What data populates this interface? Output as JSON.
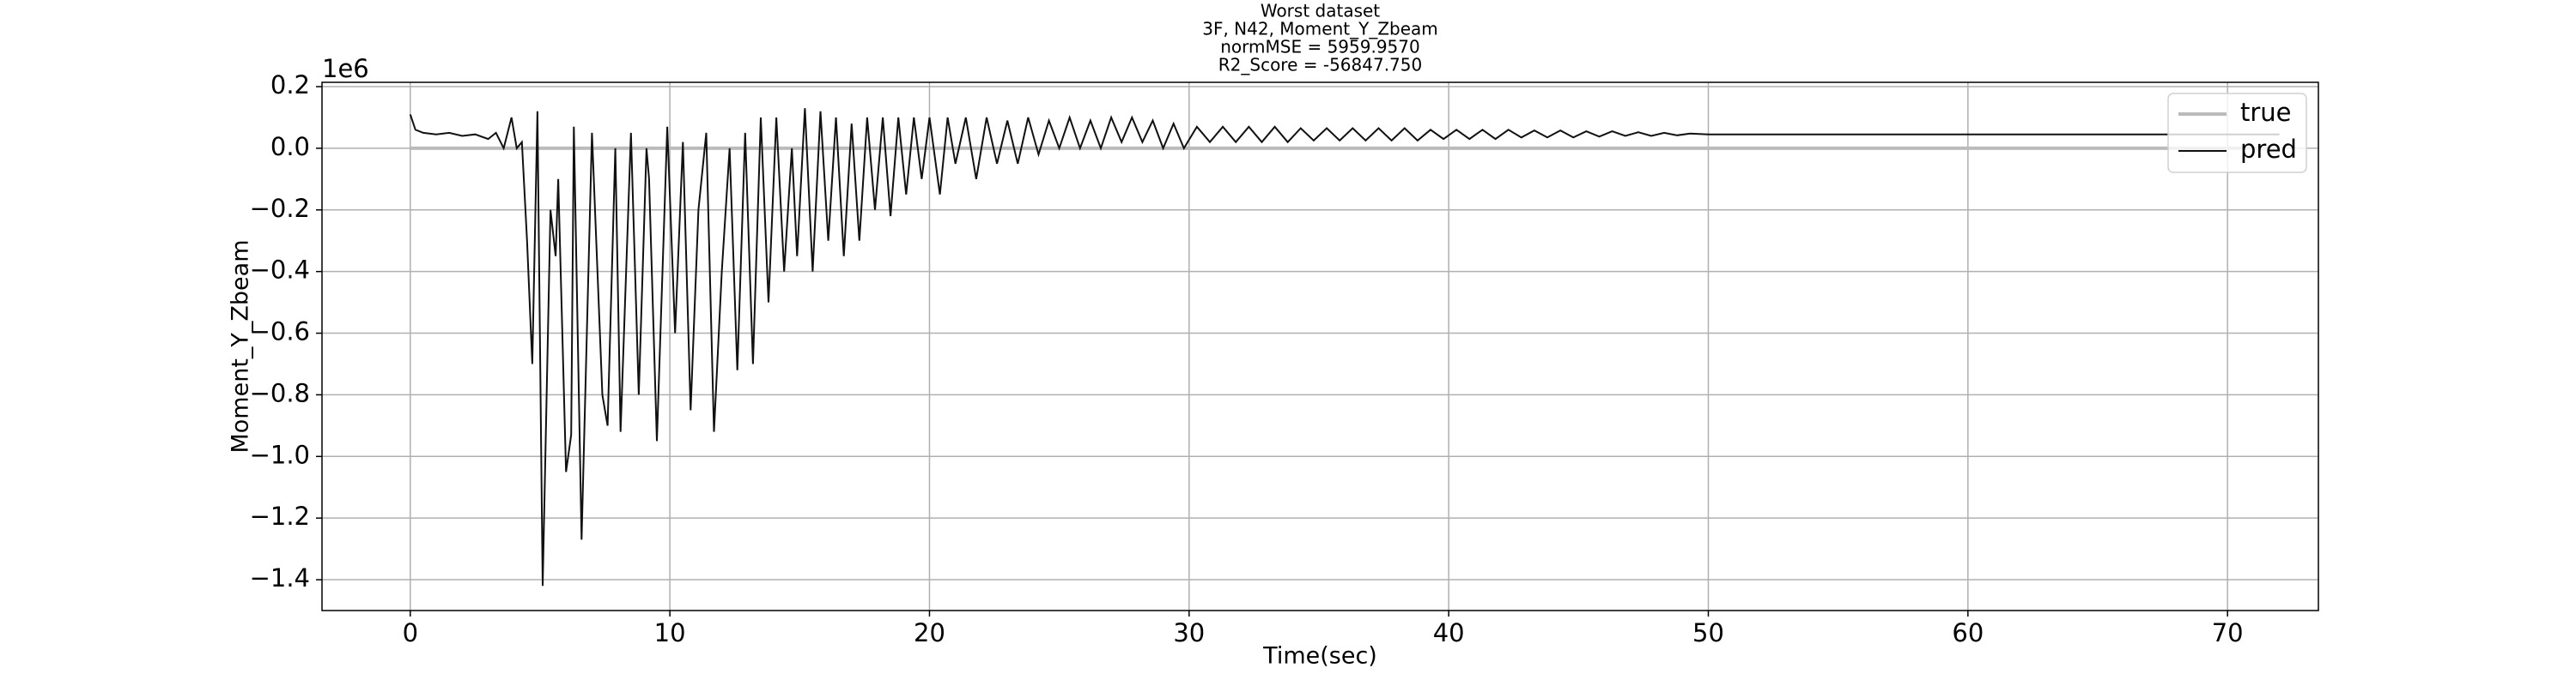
{
  "chart_data": {
    "type": "line",
    "title": [
      "Worst dataset",
      "3F, N42, Moment_Y_Zbeam",
      "normMSE = 5959.9570",
      "R2_Score = -56847.750"
    ],
    "xlabel": "Time(sec)",
    "ylabel": "Moment_Y_Zbeam",
    "y_offset_label": "1e6",
    "xlim": [
      -3.4,
      73.5
    ],
    "ylim": [
      -1.5,
      0.214
    ],
    "xticks": [
      0,
      10,
      20,
      30,
      40,
      50,
      60,
      70
    ],
    "yticks": [
      {
        "value": -1.4,
        "label": "−1.4"
      },
      {
        "value": -1.2,
        "label": "−1.2"
      },
      {
        "value": -1.0,
        "label": "−1.0"
      },
      {
        "value": -0.8,
        "label": "−0.8"
      },
      {
        "value": -0.6,
        "label": "−0.6"
      },
      {
        "value": -0.4,
        "label": "−0.4"
      },
      {
        "value": -0.2,
        "label": "−0.2"
      },
      {
        "value": 0,
        "label": "0.0"
      },
      0.2
    ],
    "grid": true,
    "legend": "upper right",
    "series": [
      {
        "name": "true",
        "color": "#bbbbbb",
        "x": [
          0,
          72
        ],
        "values": [
          0,
          0
        ]
      },
      {
        "name": "pred",
        "color": "#111111",
        "x": [
          0,
          0.2,
          0.5,
          1,
          1.5,
          2,
          2.5,
          3,
          3.3,
          3.6,
          3.9,
          4.1,
          4.3,
          4.5,
          4.7,
          4.9,
          5.1,
          5.4,
          5.6,
          5.7,
          6.0,
          6.2,
          6.3,
          6.6,
          7.0,
          7.4,
          7.6,
          7.9,
          8.1,
          8.5,
          8.8,
          9.1,
          9.2,
          9.5,
          9.9,
          10.2,
          10.5,
          10.8,
          11.1,
          11.4,
          11.7,
          12.0,
          12.3,
          12.6,
          12.9,
          13.2,
          13.5,
          13.8,
          14.1,
          14.4,
          14.7,
          14.9,
          15.2,
          15.5,
          15.8,
          16.1,
          16.4,
          16.7,
          17.0,
          17.3,
          17.6,
          17.9,
          18.2,
          18.5,
          18.8,
          19.1,
          19.4,
          19.7,
          20,
          20.4,
          20.7,
          21.0,
          21.4,
          21.8,
          22.2,
          22.6,
          23.0,
          23.4,
          23.8,
          24.2,
          24.6,
          25.0,
          25.4,
          25.8,
          26.2,
          26.6,
          27,
          27.4,
          27.8,
          28.2,
          28.6,
          29,
          29.4,
          29.8,
          30.3,
          30.8,
          31.3,
          31.8,
          32.3,
          32.8,
          33.3,
          33.8,
          34.3,
          34.8,
          35.3,
          35.8,
          36.3,
          36.8,
          37.3,
          37.8,
          38.3,
          38.8,
          39.3,
          39.8,
          40.3,
          40.8,
          41.3,
          41.8,
          42.3,
          42.8,
          43.3,
          43.8,
          44.3,
          44.8,
          45.3,
          45.8,
          46.3,
          46.8,
          47.3,
          47.8,
          48.3,
          48.8,
          49.3,
          50,
          60,
          72
        ],
        "values": [
          0.11,
          0.06,
          0.05,
          0.045,
          0.05,
          0.04,
          0.045,
          0.03,
          0.05,
          0.0,
          0.1,
          0.0,
          0.02,
          -0.3,
          -0.7,
          0.12,
          -1.42,
          -0.2,
          -0.35,
          -0.1,
          -1.05,
          -0.93,
          0.07,
          -1.27,
          0.05,
          -0.8,
          -0.9,
          0.0,
          -0.92,
          0.05,
          -0.8,
          0.0,
          -0.1,
          -0.95,
          0.07,
          -0.6,
          0.02,
          -0.85,
          -0.2,
          0.05,
          -0.92,
          -0.4,
          0.0,
          -0.72,
          0.05,
          -0.7,
          0.1,
          -0.5,
          0.1,
          -0.4,
          0.0,
          -0.35,
          0.13,
          -0.4,
          0.12,
          -0.3,
          0.1,
          -0.35,
          0.08,
          -0.3,
          0.1,
          -0.2,
          0.1,
          -0.22,
          0.1,
          -0.15,
          0.1,
          -0.1,
          0.1,
          -0.15,
          0.1,
          -0.05,
          0.1,
          -0.1,
          0.1,
          -0.05,
          0.09,
          -0.05,
          0.1,
          -0.02,
          0.09,
          0.0,
          0.1,
          0.0,
          0.09,
          0.0,
          0.1,
          0.02,
          0.1,
          0.02,
          0.09,
          0.0,
          0.08,
          0.0,
          0.07,
          0.02,
          0.07,
          0.02,
          0.07,
          0.02,
          0.07,
          0.02,
          0.065,
          0.025,
          0.065,
          0.025,
          0.065,
          0.025,
          0.065,
          0.025,
          0.065,
          0.025,
          0.06,
          0.03,
          0.06,
          0.03,
          0.06,
          0.03,
          0.06,
          0.035,
          0.058,
          0.035,
          0.058,
          0.035,
          0.055,
          0.038,
          0.055,
          0.04,
          0.052,
          0.04,
          0.05,
          0.042,
          0.048,
          0.045,
          0.045,
          0.045
        ]
      }
    ]
  }
}
